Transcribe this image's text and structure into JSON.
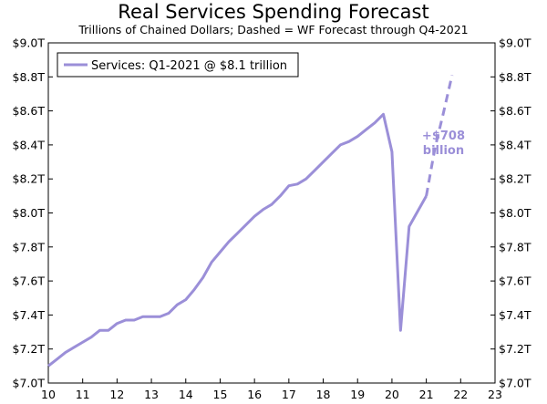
{
  "chart_data": {
    "type": "line",
    "title": "Real Services Spending Forecast",
    "subtitle": "Trillions of Chained Dollars; Dashed = WF Forecast through Q4-2021",
    "xlabel": "",
    "ylabel": "",
    "xlim": [
      10,
      23
    ],
    "ylim": [
      7.0,
      9.0
    ],
    "x_ticks": [
      "10",
      "11",
      "12",
      "13",
      "14",
      "15",
      "16",
      "17",
      "18",
      "19",
      "20",
      "21",
      "22",
      "23"
    ],
    "y_ticks": [
      "$7.0T",
      "$7.2T",
      "$7.4T",
      "$7.6T",
      "$7.8T",
      "$8.0T",
      "$8.2T",
      "$8.4T",
      "$8.6T",
      "$8.8T",
      "$9.0T"
    ],
    "y_tick_values": [
      7.0,
      7.2,
      7.4,
      7.6,
      7.8,
      8.0,
      8.2,
      8.4,
      8.6,
      8.8,
      9.0
    ],
    "grid": false,
    "legend": {
      "position": "top-left",
      "entries": [
        "Services: Q1-2021 @ $8.1 trillion"
      ]
    },
    "series": [
      {
        "name": "Services: Q1-2021 @ $8.1 trillion",
        "style": "solid",
        "color": "#9B8FD8",
        "x": [
          10.0,
          10.25,
          10.5,
          10.75,
          11.0,
          11.25,
          11.5,
          11.75,
          12.0,
          12.25,
          12.5,
          12.75,
          13.0,
          13.25,
          13.5,
          13.75,
          14.0,
          14.25,
          14.5,
          14.75,
          15.0,
          15.25,
          15.5,
          15.75,
          16.0,
          16.25,
          16.5,
          16.75,
          17.0,
          17.25,
          17.5,
          17.75,
          18.0,
          18.25,
          18.5,
          18.75,
          19.0,
          19.25,
          19.5,
          19.75,
          20.0,
          20.25,
          20.5,
          20.75,
          21.0
        ],
        "values": [
          7.1,
          7.14,
          7.18,
          7.21,
          7.24,
          7.27,
          7.31,
          7.31,
          7.35,
          7.37,
          7.37,
          7.39,
          7.39,
          7.39,
          7.41,
          7.46,
          7.49,
          7.55,
          7.62,
          7.71,
          7.77,
          7.83,
          7.88,
          7.93,
          7.98,
          8.02,
          8.05,
          8.1,
          8.16,
          8.17,
          8.2,
          8.25,
          8.3,
          8.35,
          8.4,
          8.42,
          8.45,
          8.49,
          8.53,
          8.58,
          8.36,
          7.31,
          7.92,
          8.01,
          8.1
        ]
      },
      {
        "name": "WF Forecast",
        "style": "dashed",
        "color": "#9B8FD8",
        "x": [
          21.0,
          21.25,
          21.5,
          21.75
        ],
        "values": [
          8.1,
          8.38,
          8.59,
          8.81
        ]
      }
    ],
    "annotations": [
      {
        "text": [
          "+$708",
          "billion"
        ],
        "x": 21.5,
        "y": 8.4,
        "color": "#9B8FD8"
      }
    ]
  }
}
